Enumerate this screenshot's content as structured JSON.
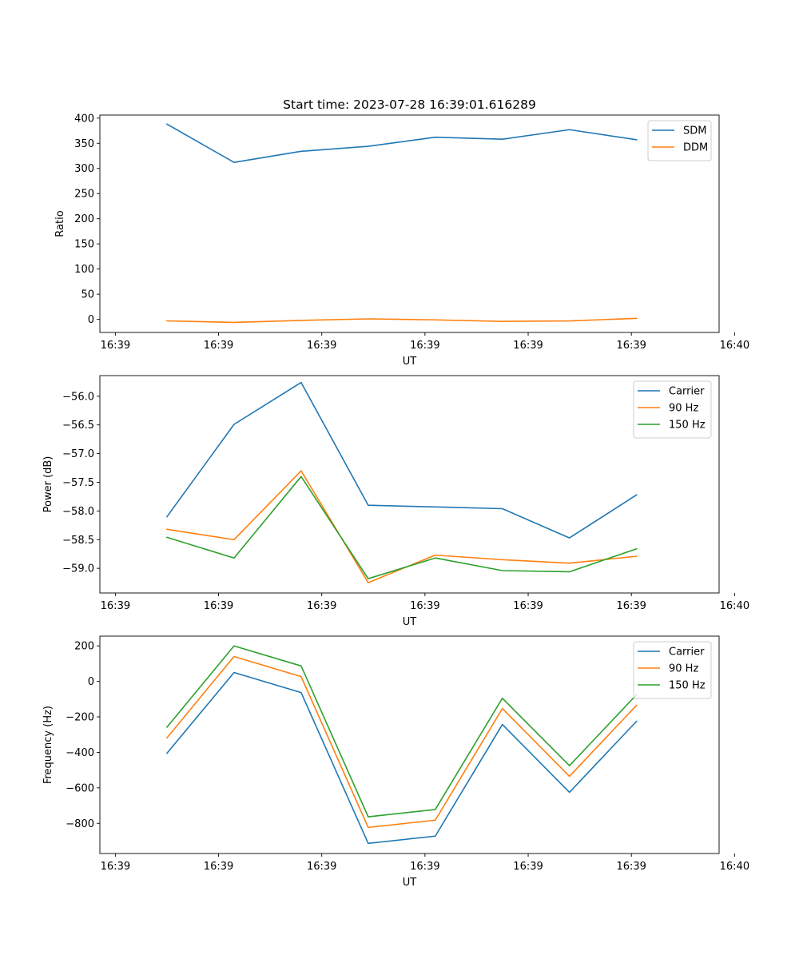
{
  "figure_title": "Start time: 2023-07-28 16:39:01.616289",
  "chart_data": [
    {
      "type": "line",
      "title": "Start time: 2023-07-28 16:39:01.616289",
      "xlabel": "UT",
      "ylabel": "Ratio",
      "xlim": [
        -0.24,
        9.36
      ],
      "x_ticks": [
        0,
        1.6,
        3.2,
        4.8,
        6.4,
        8.0,
        9.6
      ],
      "x_tick_labels": [
        "16:39",
        "16:39",
        "16:39",
        "16:39",
        "16:39",
        "16:39",
        "16:40"
      ],
      "x": [
        0.8,
        1.84,
        2.88,
        3.92,
        4.96,
        6.0,
        7.04,
        8.08
      ],
      "ylim": [
        -26,
        406
      ],
      "y_ticks": [
        0,
        50,
        100,
        150,
        200,
        250,
        300,
        350,
        400
      ],
      "y_tick_labels": [
        "0",
        "50",
        "100",
        "150",
        "200",
        "250",
        "300",
        "350",
        "400"
      ],
      "legend_position": "top-right",
      "series": [
        {
          "name": "SDM",
          "color": "#1f77b4",
          "values": [
            388,
            312,
            334,
            344,
            362,
            358,
            377,
            357
          ]
        },
        {
          "name": "DDM",
          "color": "#ff7f0e",
          "values": [
            -3,
            -6,
            -2,
            1,
            -1,
            -4,
            -3,
            2
          ]
        }
      ]
    },
    {
      "type": "line",
      "title": "",
      "xlabel": "UT",
      "ylabel": "Power (dB)",
      "xlim": [
        -0.24,
        9.36
      ],
      "x_ticks": [
        0,
        1.6,
        3.2,
        4.8,
        6.4,
        8.0,
        9.6
      ],
      "x_tick_labels": [
        "16:39",
        "16:39",
        "16:39",
        "16:39",
        "16:39",
        "16:39",
        "16:40"
      ],
      "x": [
        0.8,
        1.84,
        2.88,
        3.92,
        4.96,
        6.0,
        7.04,
        8.08
      ],
      "ylim": [
        -59.43,
        -55.64
      ],
      "y_ticks": [
        -59.0,
        -58.5,
        -58.0,
        -57.5,
        -57.0,
        -56.5,
        -56.0
      ],
      "y_tick_labels": [
        "−59.0",
        "−58.5",
        "−58.0",
        "−57.5",
        "−57.0",
        "−56.5",
        "−56.0"
      ],
      "legend_position": "top-right",
      "series": [
        {
          "name": "Carrier",
          "color": "#1f77b4",
          "values": [
            -58.1,
            -56.49,
            -55.76,
            -57.9,
            -57.93,
            -57.96,
            -58.47,
            -57.72
          ]
        },
        {
          "name": "90 Hz",
          "color": "#ff7f0e",
          "values": [
            -58.32,
            -58.5,
            -57.3,
            -59.25,
            -58.77,
            -58.85,
            -58.91,
            -58.79
          ]
        },
        {
          "name": "150 Hz",
          "color": "#2ca02c",
          "values": [
            -58.46,
            -58.82,
            -57.4,
            -59.18,
            -58.82,
            -59.04,
            -59.06,
            -58.66
          ]
        }
      ]
    },
    {
      "type": "line",
      "title": "",
      "xlabel": "UT",
      "ylabel": "Frequency (Hz)",
      "xlim": [
        -0.24,
        9.36
      ],
      "x_ticks": [
        0,
        1.6,
        3.2,
        4.8,
        6.4,
        8.0,
        9.6
      ],
      "x_tick_labels": [
        "16:39",
        "16:39",
        "16:39",
        "16:39",
        "16:39",
        "16:39",
        "16:40"
      ],
      "x": [
        0.8,
        1.84,
        2.88,
        3.92,
        4.96,
        6.0,
        7.04,
        8.08
      ],
      "ylim": [
        -970,
        255
      ],
      "y_ticks": [
        -800,
        -600,
        -400,
        -200,
        0,
        200
      ],
      "y_tick_labels": [
        "−800",
        "−600",
        "−400",
        "−200",
        "0",
        "200"
      ],
      "legend_position": "top-right",
      "series": [
        {
          "name": "Carrier",
          "color": "#1f77b4",
          "values": [
            -405,
            50,
            -63,
            -913,
            -872,
            -243,
            -625,
            -225
          ]
        },
        {
          "name": "90 Hz",
          "color": "#ff7f0e",
          "values": [
            -318,
            140,
            27,
            -823,
            -782,
            -153,
            -535,
            -135
          ]
        },
        {
          "name": "150 Hz",
          "color": "#2ca02c",
          "values": [
            -258,
            200,
            87,
            -763,
            -722,
            -95,
            -475,
            -75
          ]
        }
      ]
    }
  ]
}
